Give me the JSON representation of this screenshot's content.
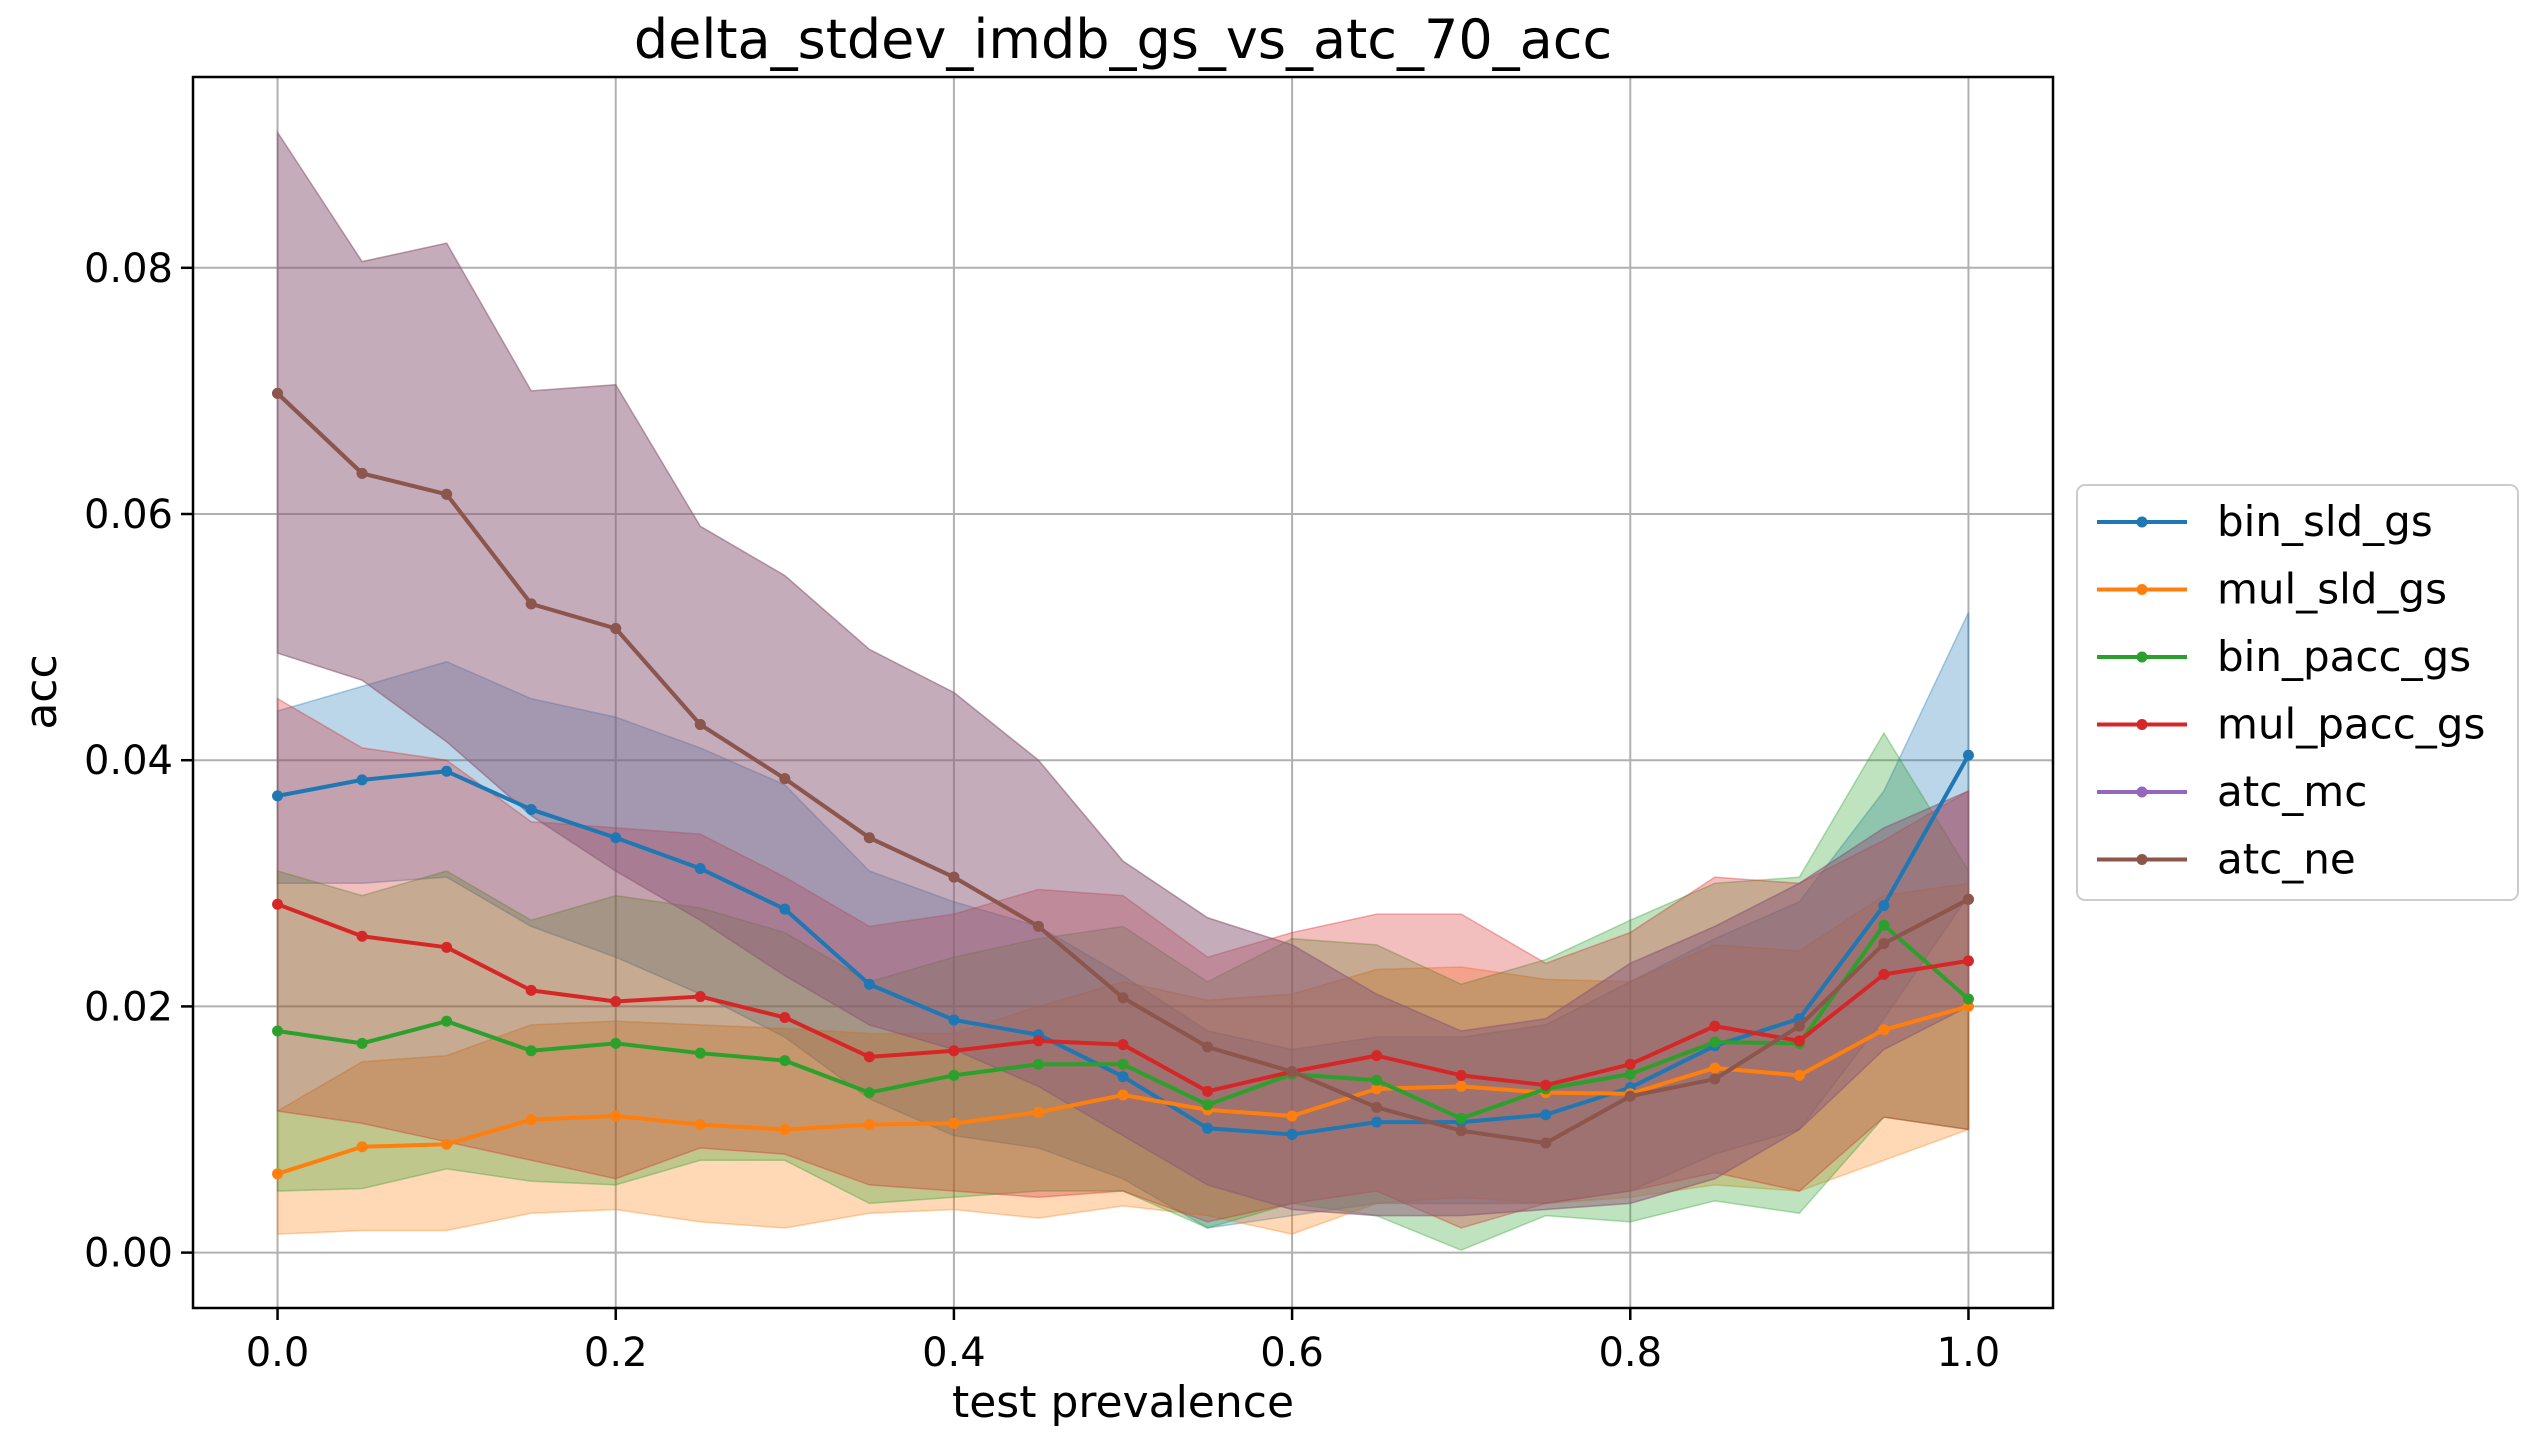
{
  "chart_data": {
    "type": "line",
    "title": "delta_stdev_imdb_gs_vs_atc_70_acc",
    "xlabel": "test prevalence",
    "ylabel": "acc",
    "xlim": [
      -0.05,
      1.05
    ],
    "ylim": [
      -0.0045,
      0.0955
    ],
    "grid": true,
    "legend_position": "right-outside",
    "xticks": [
      "0.0",
      "0.2",
      "0.4",
      "0.6",
      "0.8",
      "1.0"
    ],
    "xtick_values": [
      0.0,
      0.2,
      0.4,
      0.6,
      0.8,
      1.0
    ],
    "yticks": [
      "0.00",
      "0.02",
      "0.04",
      "0.06",
      "0.08"
    ],
    "ytick_values": [
      0.0,
      0.02,
      0.04,
      0.06,
      0.08
    ],
    "x": [
      0.0,
      0.05,
      0.1,
      0.15,
      0.2,
      0.25,
      0.3,
      0.35,
      0.4,
      0.45,
      0.5,
      0.55,
      0.6,
      0.65,
      0.7,
      0.75,
      0.8,
      0.85,
      0.9,
      0.95,
      1.0
    ],
    "series": [
      {
        "name": "bin_sld_gs",
        "color": "#1f77b4",
        "values": [
          0.0371,
          0.0384,
          0.0391,
          0.036,
          0.0337,
          0.0312,
          0.0279,
          0.0218,
          0.0189,
          0.0177,
          0.0143,
          0.0101,
          0.0096,
          0.0106,
          0.0106,
          0.0112,
          0.0134,
          0.0168,
          0.019,
          0.0282,
          0.0404
        ],
        "lower": [
          0.03,
          0.03,
          0.0305,
          0.0265,
          0.024,
          0.021,
          0.0175,
          0.0125,
          0.0095,
          0.0085,
          0.006,
          0.002,
          0.003,
          0.004,
          0.004,
          0.004,
          0.005,
          0.008,
          0.01,
          0.019,
          0.029
        ],
        "upper": [
          0.044,
          0.046,
          0.048,
          0.045,
          0.0435,
          0.041,
          0.038,
          0.031,
          0.0285,
          0.0265,
          0.0225,
          0.018,
          0.0165,
          0.0175,
          0.0175,
          0.0185,
          0.022,
          0.0255,
          0.0285,
          0.0375,
          0.052
        ]
      },
      {
        "name": "mul_sld_gs",
        "color": "#ff7f0e",
        "values": [
          0.0064,
          0.0086,
          0.0088,
          0.0108,
          0.0111,
          0.0104,
          0.01,
          0.0104,
          0.0105,
          0.0114,
          0.0128,
          0.0116,
          0.0111,
          0.0133,
          0.0135,
          0.013,
          0.0129,
          0.015,
          0.0144,
          0.0181,
          0.02
        ],
        "lower": [
          0.0015,
          0.0018,
          0.0018,
          0.0032,
          0.0035,
          0.0025,
          0.002,
          0.0032,
          0.0035,
          0.0028,
          0.0038,
          0.003,
          0.0015,
          0.004,
          0.0045,
          0.004,
          0.0045,
          0.0055,
          0.005,
          0.0075,
          0.01
        ],
        "upper": [
          0.0115,
          0.0155,
          0.016,
          0.0185,
          0.0188,
          0.0185,
          0.0182,
          0.0178,
          0.0178,
          0.02,
          0.022,
          0.0205,
          0.021,
          0.023,
          0.0232,
          0.0222,
          0.022,
          0.025,
          0.0245,
          0.029,
          0.03
        ]
      },
      {
        "name": "bin_pacc_gs",
        "color": "#2ca02c",
        "values": [
          0.018,
          0.017,
          0.0188,
          0.0164,
          0.017,
          0.0162,
          0.0156,
          0.013,
          0.0144,
          0.0153,
          0.0153,
          0.012,
          0.0145,
          0.014,
          0.0109,
          0.0133,
          0.0145,
          0.0171,
          0.017,
          0.0266,
          0.0206
        ],
        "lower": [
          0.005,
          0.0052,
          0.0068,
          0.0058,
          0.0055,
          0.0075,
          0.0075,
          0.004,
          0.0045,
          0.005,
          0.005,
          0.002,
          0.004,
          0.003,
          0.0002,
          0.003,
          0.0025,
          0.0042,
          0.0032,
          0.011,
          0.01
        ],
        "upper": [
          0.031,
          0.029,
          0.031,
          0.027,
          0.029,
          0.028,
          0.026,
          0.022,
          0.024,
          0.0255,
          0.0265,
          0.022,
          0.0255,
          0.025,
          0.0218,
          0.0238,
          0.027,
          0.03,
          0.0305,
          0.0422,
          0.031
        ]
      },
      {
        "name": "mul_pacc_gs",
        "color": "#d62728",
        "values": [
          0.0283,
          0.0257,
          0.0248,
          0.0213,
          0.0204,
          0.0208,
          0.0191,
          0.0159,
          0.0164,
          0.0172,
          0.0169,
          0.0131,
          0.0147,
          0.016,
          0.0144,
          0.0136,
          0.0153,
          0.0184,
          0.0172,
          0.0226,
          0.0237
        ],
        "lower": [
          0.0115,
          0.0105,
          0.009,
          0.0075,
          0.006,
          0.0085,
          0.008,
          0.0055,
          0.005,
          0.0045,
          0.005,
          0.0025,
          0.004,
          0.005,
          0.002,
          0.004,
          0.005,
          0.0065,
          0.005,
          0.011,
          0.01
        ],
        "upper": [
          0.045,
          0.041,
          0.04,
          0.035,
          0.0345,
          0.034,
          0.0305,
          0.0265,
          0.0275,
          0.0295,
          0.029,
          0.024,
          0.026,
          0.0275,
          0.0275,
          0.0235,
          0.026,
          0.0305,
          0.03,
          0.0335,
          0.0375
        ]
      },
      {
        "name": "atc_mc",
        "color": "#9467bd",
        "values": [
          0.0698,
          0.0633,
          0.0616,
          0.0527,
          0.0507,
          0.0429,
          0.0385,
          0.0337,
          0.0305,
          0.0265,
          0.0207,
          0.0167,
          0.0147,
          0.0118,
          0.0099,
          0.0089,
          0.0127,
          0.0141,
          0.0184,
          0.0251,
          0.0287
        ],
        "lower": [
          0.0487,
          0.0465,
          0.0415,
          0.0355,
          0.031,
          0.027,
          0.0225,
          0.0185,
          0.0165,
          0.0135,
          0.0095,
          0.0055,
          0.0035,
          0.003,
          0.003,
          0.0035,
          0.004,
          0.006,
          0.01,
          0.0165,
          0.02
        ],
        "upper": [
          0.091,
          0.0805,
          0.082,
          0.07,
          0.0705,
          0.059,
          0.055,
          0.049,
          0.0455,
          0.04,
          0.0318,
          0.0272,
          0.025,
          0.021,
          0.018,
          0.019,
          0.0235,
          0.0265,
          0.03,
          0.0345,
          0.0375
        ]
      },
      {
        "name": "atc_ne",
        "color": "#8c564b",
        "values": [
          0.0698,
          0.0633,
          0.0616,
          0.0527,
          0.0507,
          0.0429,
          0.0385,
          0.0337,
          0.0305,
          0.0265,
          0.0207,
          0.0167,
          0.0147,
          0.0118,
          0.0099,
          0.0089,
          0.0127,
          0.0141,
          0.0184,
          0.0251,
          0.0287
        ],
        "lower": [
          0.0487,
          0.0465,
          0.0415,
          0.0355,
          0.031,
          0.027,
          0.0225,
          0.0185,
          0.0165,
          0.0135,
          0.0095,
          0.0055,
          0.0035,
          0.003,
          0.003,
          0.0035,
          0.004,
          0.006,
          0.01,
          0.0165,
          0.02
        ],
        "upper": [
          0.091,
          0.0805,
          0.082,
          0.07,
          0.0705,
          0.059,
          0.055,
          0.049,
          0.0455,
          0.04,
          0.0318,
          0.0272,
          0.025,
          0.021,
          0.018,
          0.019,
          0.0235,
          0.0265,
          0.03,
          0.0345,
          0.0375
        ]
      }
    ]
  }
}
